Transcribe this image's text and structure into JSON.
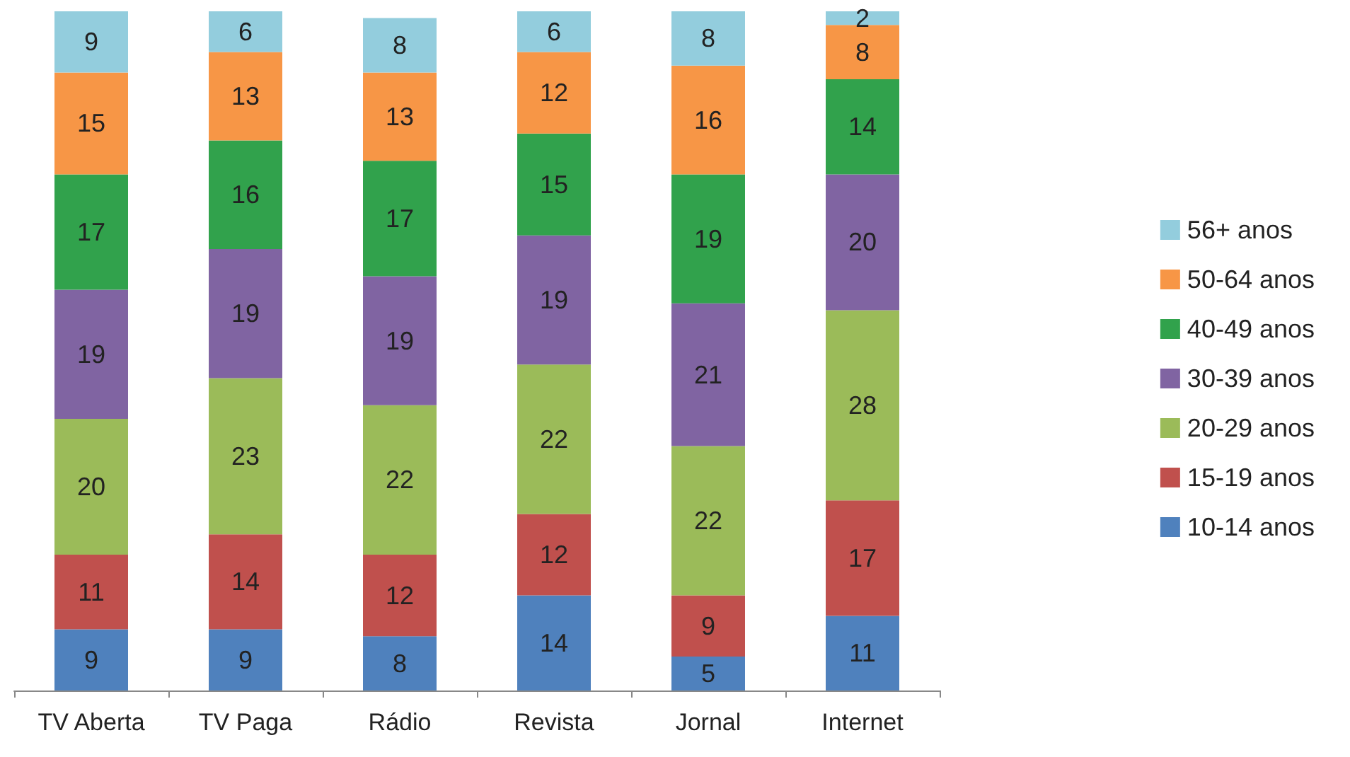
{
  "chart_data": {
    "type": "bar",
    "stacked": true,
    "data_labels": true,
    "legend": "right",
    "categories": [
      "TV Aberta",
      "TV Paga",
      "Rádio",
      "Revista",
      "Jornal",
      "Internet"
    ],
    "series": [
      {
        "name": "10-14 anos",
        "color": "#4f81bd",
        "values": [
          9,
          9,
          8,
          14,
          5,
          11
        ]
      },
      {
        "name": "15-19 anos",
        "color": "#c0504d",
        "values": [
          11,
          14,
          12,
          12,
          9,
          17
        ]
      },
      {
        "name": "20-29 anos",
        "color": "#9bbb59",
        "values": [
          20,
          23,
          22,
          22,
          22,
          28
        ]
      },
      {
        "name": "30-39 anos",
        "color": "#8064a2",
        "values": [
          19,
          19,
          19,
          19,
          21,
          20
        ]
      },
      {
        "name": "40-49 anos",
        "color": "#31a24c",
        "values": [
          17,
          16,
          17,
          15,
          19,
          14
        ]
      },
      {
        "name": "50-64 anos",
        "color": "#f79646",
        "values": [
          15,
          13,
          13,
          12,
          16,
          8
        ]
      },
      {
        "name": "56+ anos",
        "color": "#93cddd",
        "values": [
          9,
          6,
          8,
          6,
          8,
          2
        ]
      }
    ]
  }
}
